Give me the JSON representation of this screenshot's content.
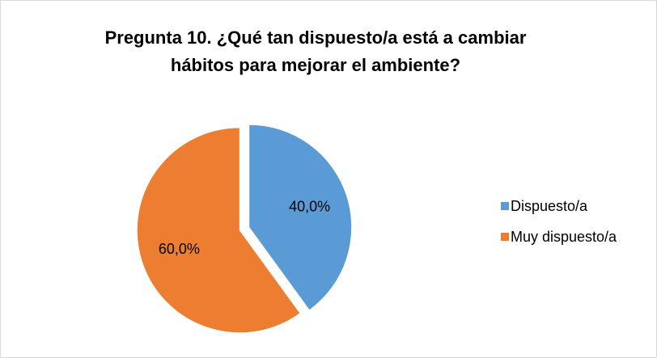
{
  "chart_data": {
    "type": "pie",
    "title": "Pregunta 10. ¿Qué tan dispuesto/a está a cambiar hábitos para mejorar el ambiente?",
    "categories": [
      "Dispuesto/a",
      "Muy dispuesto/a"
    ],
    "values": [
      40,
      60
    ],
    "value_labels": [
      "40,0%",
      "60,0%"
    ],
    "colors": [
      "#5b9bd5",
      "#ed7d31"
    ],
    "legend": "right"
  }
}
